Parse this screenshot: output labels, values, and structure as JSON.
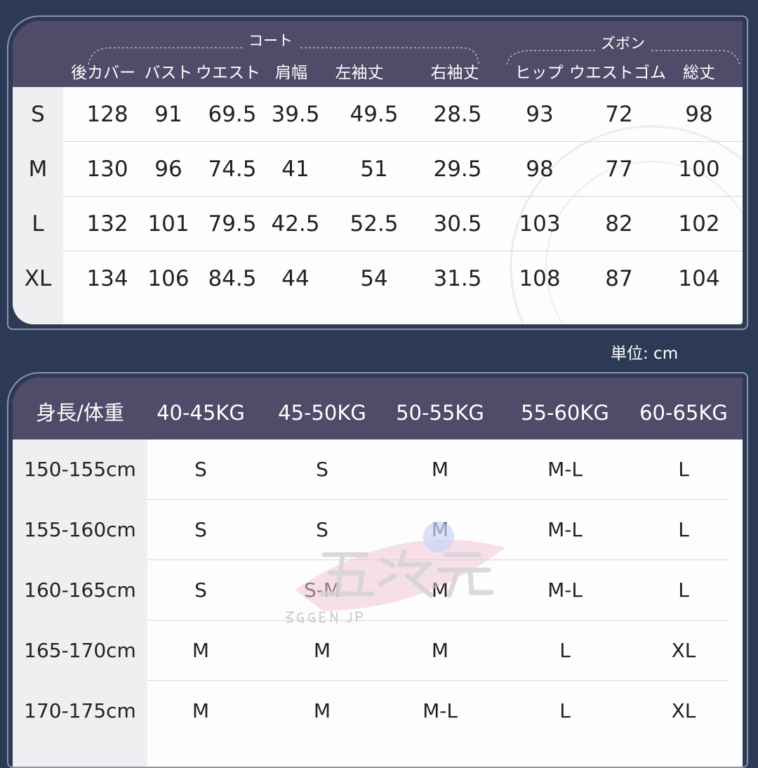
{
  "coat_table": {
    "group_coat": "コート",
    "group_pants": "ズボン",
    "headers": [
      "後カバー",
      "バスト",
      "ウエスト",
      "肩幅",
      "左袖丈",
      "右袖丈",
      "ヒップ",
      "ウエストゴム",
      "総丈"
    ],
    "rows": [
      {
        "size": "S",
        "values": [
          "128",
          "91",
          "69.5",
          "39.5",
          "49.5",
          "28.5",
          "93",
          "72",
          "98"
        ]
      },
      {
        "size": "M",
        "values": [
          "130",
          "96",
          "74.5",
          "41",
          "51",
          "29.5",
          "98",
          "77",
          "100"
        ]
      },
      {
        "size": "L",
        "values": [
          "132",
          "101",
          "79.5",
          "42.5",
          "52.5",
          "30.5",
          "103",
          "82",
          "102"
        ]
      },
      {
        "size": "XL",
        "values": [
          "134",
          "106",
          "84.5",
          "44",
          "54",
          "31.5",
          "108",
          "87",
          "104"
        ]
      }
    ]
  },
  "unit_label": "単位: cm",
  "fit_table": {
    "corner": "身長/体重",
    "headers": [
      "40-45KG",
      "45-50KG",
      "50-55KG",
      "55-60KG",
      "60-65KG"
    ],
    "rows": [
      {
        "height": "150-155cm",
        "values": [
          "S",
          "S",
          "M",
          "M-L",
          "L"
        ]
      },
      {
        "height": "155-160cm",
        "values": [
          "S",
          "S",
          "M",
          "M-L",
          "L"
        ]
      },
      {
        "height": "160-165cm",
        "values": [
          "S",
          "S-M",
          "M",
          "M-L",
          "L"
        ]
      },
      {
        "height": "165-170cm",
        "values": [
          "M",
          "M",
          "M",
          "L",
          "XL"
        ]
      },
      {
        "height": "170-175cm",
        "values": [
          "M",
          "M",
          "M-L",
          "L",
          "XL"
        ]
      }
    ]
  },
  "watermark": {
    "text": "五次元",
    "sub": "5GGEN.JP"
  },
  "colors": {
    "background": "#2c3a56",
    "header": "#4f4b68",
    "panel": "#fdfdfd"
  }
}
